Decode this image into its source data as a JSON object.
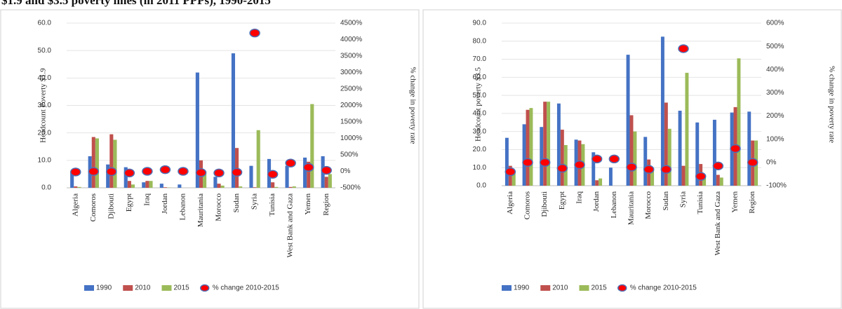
{
  "caption": "$1.9 and $3.5 poverty lines (in 2011 PPPs), 1990-2015",
  "chart_data": [
    {
      "type": "bar",
      "ylabel": "Headcount Poverty $1.9",
      "y2label": "% change in poverty rate",
      "categories": [
        "Algeria",
        "Comoros",
        "Djibouti",
        "Egypt",
        "Iraq",
        "Jordan",
        "Lebanon",
        "Mauritania",
        "Morocco",
        "Sudan",
        "Syria",
        "Tunisia",
        "West Bank and Gaza",
        "Yemen",
        "Region"
      ],
      "series": [
        {
          "name": "1990",
          "color": "#4472c4",
          "values": [
            6,
            11.5,
            8.5,
            7.5,
            2,
            1.5,
            1.2,
            42,
            4,
            49,
            8,
            10.5,
            8,
            11,
            11.5
          ]
        },
        {
          "name": "2010",
          "color": "#c0504d",
          "values": [
            0.5,
            18.5,
            19.5,
            2.5,
            2.5,
            0.2,
            0,
            10,
            1.5,
            14.5,
            0.2,
            2,
            0.3,
            9.5,
            4
          ]
        },
        {
          "name": "2015",
          "color": "#9bbb59",
          "values": [
            0.3,
            18,
            17.5,
            1.2,
            2.5,
            0.1,
            0,
            6,
            0.8,
            0.5,
            21,
            0.3,
            0.5,
            30.5,
            5
          ]
        },
        {
          "name": "% change 2010-2015",
          "type": "scatter",
          "axis": "y2",
          "color": "#ff0000",
          "edge_color": "#4f6fb4",
          "values": [
            -20,
            -5,
            -10,
            -50,
            0,
            50,
            0,
            -40,
            -50,
            -30,
            4200,
            -90,
            250,
            120,
            30
          ]
        }
      ],
      "ylim": [
        0,
        60
      ],
      "yticks": [
        {
          "value": 0,
          "label": "0.0"
        },
        {
          "value": 10,
          "label": "10.0"
        },
        {
          "value": 20,
          "label": "20.0"
        },
        {
          "value": 30,
          "label": "30.0"
        },
        {
          "value": 40,
          "label": "40.0"
        },
        {
          "value": 50,
          "label": "50.0"
        },
        {
          "value": 60,
          "label": "60.0"
        }
      ],
      "y2lim": [
        -500,
        4500
      ],
      "y2ticks": [
        {
          "value": -500,
          "label": "-500%"
        },
        {
          "value": 0,
          "label": "0%"
        },
        {
          "value": 500,
          "label": "500%"
        },
        {
          "value": 1000,
          "label": "1000%"
        },
        {
          "value": 1500,
          "label": "1500%"
        },
        {
          "value": 2000,
          "label": "2000%"
        },
        {
          "value": 2500,
          "label": "2500%"
        },
        {
          "value": 3000,
          "label": "3000%"
        },
        {
          "value": 3500,
          "label": "3500%"
        },
        {
          "value": 4000,
          "label": "4000%"
        },
        {
          "value": 4500,
          "label": "4500%"
        }
      ],
      "grid": true,
      "legend": "bottom"
    },
    {
      "type": "bar",
      "ylabel": "Headcount poverty $3.5",
      "y2label": "% change in poverty rate",
      "categories": [
        "Algeria",
        "Comoros",
        "Djibouti",
        "Egypt",
        "Iraq",
        "Jordan",
        "Lebanon",
        "Mauritania",
        "Morocco",
        "Sudan",
        "Syria",
        "Tunisia",
        "West Bank and Gaza",
        "Yemen",
        "Region"
      ],
      "series": [
        {
          "name": "1990",
          "color": "#4472c4",
          "values": [
            26.5,
            34,
            32.5,
            45.5,
            25.5,
            18.5,
            10,
            72.5,
            27,
            82.5,
            41.5,
            35,
            36.5,
            40.5,
            41
          ]
        },
        {
          "name": "2010",
          "color": "#c0504d",
          "values": [
            11,
            42,
            46.5,
            31,
            25,
            3,
            0,
            39,
            14.5,
            46,
            11,
            12,
            6,
            43.5,
            25
          ]
        },
        {
          "name": "2015",
          "color": "#9bbb59",
          "values": [
            8,
            43,
            46.5,
            22.5,
            23,
            4,
            0,
            30,
            10,
            31.5,
            62.5,
            6,
            4.5,
            70.5,
            25
          ]
        },
        {
          "name": "% change 2010-2015",
          "type": "scatter",
          "axis": "y2",
          "color": "#ff0000",
          "edge_color": "#4f6fb4",
          "values": [
            -40,
            0,
            0,
            -25,
            -10,
            15,
            15,
            -20,
            -30,
            -30,
            490,
            -60,
            -15,
            60,
            0
          ]
        }
      ],
      "ylim": [
        0,
        90
      ],
      "yticks": [
        {
          "value": 0,
          "label": "0.0"
        },
        {
          "value": 10,
          "label": "10.0"
        },
        {
          "value": 20,
          "label": "20.0"
        },
        {
          "value": 30,
          "label": "30.0"
        },
        {
          "value": 40,
          "label": "40.0"
        },
        {
          "value": 50,
          "label": "50.0"
        },
        {
          "value": 60,
          "label": "60.0"
        },
        {
          "value": 70,
          "label": "70.0"
        },
        {
          "value": 80,
          "label": "80.0"
        },
        {
          "value": 90,
          "label": "90.0"
        }
      ],
      "y2lim": [
        -100,
        600
      ],
      "y2ticks": [
        {
          "value": -100,
          "label": "-100%"
        },
        {
          "value": 0,
          "label": "0%"
        },
        {
          "value": 100,
          "label": "100%"
        },
        {
          "value": 200,
          "label": "200%"
        },
        {
          "value": 300,
          "label": "300%"
        },
        {
          "value": 400,
          "label": "400%"
        },
        {
          "value": 500,
          "label": "500%"
        },
        {
          "value": 600,
          "label": "600%"
        }
      ],
      "grid": true,
      "legend": "bottom"
    }
  ]
}
